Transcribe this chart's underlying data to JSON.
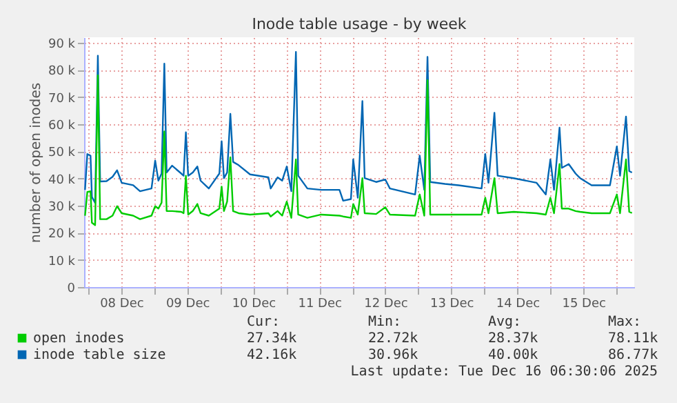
{
  "chart_data": {
    "type": "line",
    "title": "Inode table usage - by week",
    "ylabel": "number of open inodes",
    "x": [
      "2025-12-07T22:50",
      "2025-12-07T23:40",
      "2025-12-08T00:50",
      "2025-12-08T01:20",
      "2025-12-08T02:30",
      "2025-12-08T03:30",
      "2025-12-08T04:20",
      "2025-12-08T06:40",
      "2025-12-08T08:50",
      "2025-12-08T10:30",
      "2025-12-08T12:10",
      "2025-12-08T16:20",
      "2025-12-08T18:50",
      "2025-12-08T23:00",
      "2025-12-09T00:20",
      "2025-12-09T01:30",
      "2025-12-09T02:40",
      "2025-12-09T03:40",
      "2025-12-09T04:30",
      "2025-12-09T06:30",
      "2025-12-09T09:50",
      "2025-12-09T10:40",
      "2025-12-09T11:30",
      "2025-12-09T12:20",
      "2025-12-09T14:00",
      "2025-12-09T15:40",
      "2025-12-09T16:50",
      "2025-12-09T19:50",
      "2025-12-09T23:40",
      "2025-12-10T00:30",
      "2025-12-10T01:20",
      "2025-12-10T02:30",
      "2025-12-10T03:40",
      "2025-12-10T04:40",
      "2025-12-10T06:40",
      "2025-12-10T10:50",
      "2025-12-10T17:30",
      "2025-12-10T18:20",
      "2025-12-10T20:50",
      "2025-12-10T22:30",
      "2025-12-11T00:10",
      "2025-12-11T01:50",
      "2025-12-11T03:30",
      "2025-12-11T04:20",
      "2025-12-11T07:40",
      "2025-12-11T12:40",
      "2025-12-11T19:20",
      "2025-12-11T20:40",
      "2025-12-11T23:30",
      "2025-12-12T00:20",
      "2025-12-12T02:00",
      "2025-12-12T03:40",
      "2025-12-12T04:30",
      "2025-12-12T08:40",
      "2025-12-12T12:00",
      "2025-12-12T13:40",
      "2025-12-12T22:50",
      "2025-12-13T00:30",
      "2025-12-13T02:10",
      "2025-12-13T03:20",
      "2025-12-13T04:20",
      "2025-12-13T09:40",
      "2025-12-13T14:40",
      "2025-12-13T23:00",
      "2025-12-14T00:20",
      "2025-12-14T01:30",
      "2025-12-14T03:40",
      "2025-12-14T04:50",
      "2025-12-14T10:40",
      "2025-12-14T19:00",
      "2025-12-14T22:20",
      "2025-12-15T00:00",
      "2025-12-15T01:20",
      "2025-12-15T03:20",
      "2025-12-15T04:10",
      "2025-12-15T06:40",
      "2025-12-15T09:10",
      "2025-12-15T10:50",
      "2025-12-15T15:00",
      "2025-12-15T21:40",
      "2025-12-16T00:10",
      "2025-12-16T01:20",
      "2025-12-16T03:30",
      "2025-12-16T04:40",
      "2025-12-16T05:40"
    ],
    "series": [
      {
        "name": "open inodes",
        "color": "#00cc00",
        "values": [
          26300,
          35000,
          35300,
          23700,
          22800,
          78000,
          25000,
          25000,
          26300,
          29800,
          27200,
          26300,
          25000,
          26300,
          29800,
          28900,
          31100,
          57300,
          28000,
          28000,
          27700,
          27200,
          41000,
          26700,
          28000,
          30600,
          27200,
          26300,
          28900,
          37000,
          28000,
          31500,
          47800,
          28000,
          27200,
          26700,
          27200,
          26000,
          28000,
          26300,
          31500,
          25500,
          47000,
          26700,
          25500,
          26700,
          26300,
          26000,
          25500,
          30600,
          26700,
          40100,
          27200,
          26900,
          29400,
          26700,
          26300,
          34100,
          26300,
          76200,
          26700,
          26700,
          26700,
          26700,
          32900,
          27200,
          40100,
          27200,
          27700,
          27200,
          26700,
          32900,
          27200,
          45300,
          28900,
          28900,
          28000,
          27700,
          27200,
          27200,
          34100,
          27200,
          47000,
          27700,
          27300
        ]
      },
      {
        "name": "inode table size",
        "color": "#0066b3",
        "values": [
          35800,
          49000,
          48400,
          33200,
          31000,
          85200,
          38900,
          39000,
          40600,
          43000,
          38400,
          37500,
          35300,
          36300,
          46600,
          39200,
          41800,
          82300,
          42200,
          44700,
          41800,
          41000,
          57000,
          41000,
          42200,
          44400,
          39200,
          36300,
          41800,
          53700,
          40100,
          42200,
          63800,
          46100,
          44900,
          41500,
          40400,
          36300,
          40400,
          39200,
          44400,
          35300,
          86600,
          41000,
          36300,
          35800,
          35800,
          31800,
          32400,
          47000,
          32900,
          68500,
          40100,
          38700,
          39600,
          36300,
          34100,
          48400,
          35800,
          84800,
          38700,
          38000,
          37500,
          36300,
          49000,
          38400,
          64200,
          41000,
          40100,
          38400,
          34100,
          47000,
          35800,
          58700,
          43900,
          45300,
          41800,
          40100,
          37500,
          37500,
          51800,
          41000,
          62800,
          42700,
          42200
        ]
      }
    ],
    "xlim": [
      "2025-12-07T22:30",
      "2025-12-16T06:30"
    ],
    "xticks": [
      {
        "value": "2025-12-08T00:00",
        "label": null
      },
      {
        "value": "2025-12-08T12:00",
        "label": "08 Dec"
      },
      {
        "value": "2025-12-09T00:00",
        "label": null
      },
      {
        "value": "2025-12-09T12:00",
        "label": "09 Dec"
      },
      {
        "value": "2025-12-10T00:00",
        "label": null
      },
      {
        "value": "2025-12-10T12:00",
        "label": "10 Dec"
      },
      {
        "value": "2025-12-11T00:00",
        "label": null
      },
      {
        "value": "2025-12-11T12:00",
        "label": "11 Dec"
      },
      {
        "value": "2025-12-12T00:00",
        "label": null
      },
      {
        "value": "2025-12-12T12:00",
        "label": "12 Dec"
      },
      {
        "value": "2025-12-13T00:00",
        "label": null
      },
      {
        "value": "2025-12-13T12:00",
        "label": "13 Dec"
      },
      {
        "value": "2025-12-14T00:00",
        "label": null
      },
      {
        "value": "2025-12-14T12:00",
        "label": "14 Dec"
      },
      {
        "value": "2025-12-15T00:00",
        "label": null
      },
      {
        "value": "2025-12-15T12:00",
        "label": "15 Dec"
      },
      {
        "value": "2025-12-16T00:00",
        "label": null
      }
    ],
    "ylim": [
      0,
      92000
    ],
    "yticks": [
      {
        "value": 0,
        "label": "0"
      },
      {
        "value": 10000,
        "label": "10 k"
      },
      {
        "value": 20000,
        "label": "20 k"
      },
      {
        "value": 30000,
        "label": "30 k"
      },
      {
        "value": 40000,
        "label": "40 k"
      },
      {
        "value": 50000,
        "label": "50 k"
      },
      {
        "value": 60000,
        "label": "60 k"
      },
      {
        "value": 70000,
        "label": "70 k"
      },
      {
        "value": 80000,
        "label": "80 k"
      },
      {
        "value": 90000,
        "label": "90 k"
      }
    ],
    "grid": true,
    "legend": "bottom left",
    "marker": "none",
    "line_style": "solid",
    "annotations": [
      "Cur:",
      "Min:",
      "Avg:",
      "Max:",
      "27.34k",
      "22.72k",
      "28.37k",
      "78.11k",
      "42.16k",
      "30.96k",
      "40.00k",
      "86.77k",
      "Last update: Tue Dec 16 06:30:06 2025"
    ]
  }
}
